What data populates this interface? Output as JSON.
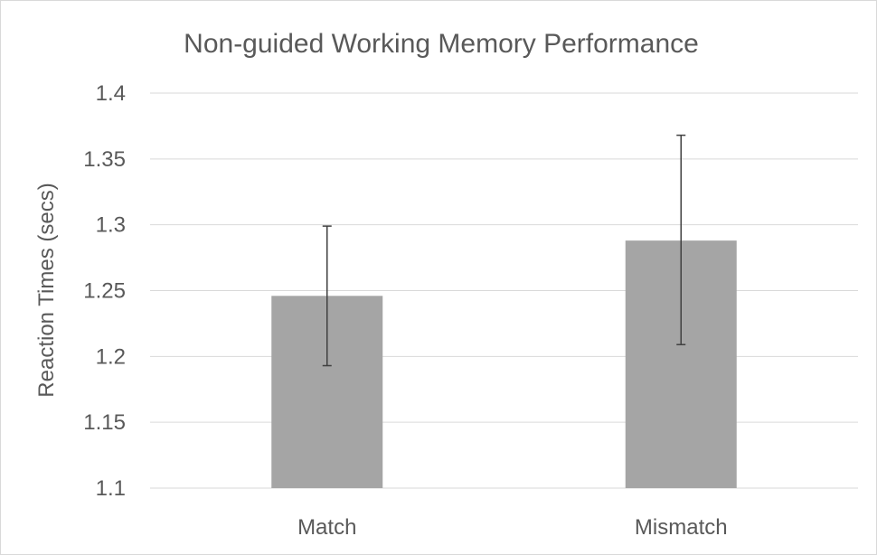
{
  "chart_data": {
    "type": "bar",
    "title": "Non-guided Working Memory  Performance",
    "xlabel": "",
    "ylabel": "Reaction Times (secs)",
    "ylim": [
      1.1,
      1.4
    ],
    "yticks": [
      1.1,
      1.15,
      1.2,
      1.25,
      1.3,
      1.35,
      1.4
    ],
    "categories": [
      "Match",
      "Mismatch"
    ],
    "values": [
      1.246,
      1.288
    ],
    "error_bars": [
      {
        "low": 1.193,
        "high": 1.299
      },
      {
        "low": 1.209,
        "high": 1.368
      }
    ],
    "grid": true,
    "legend": "none",
    "bar_color": "#a5a5a5"
  }
}
